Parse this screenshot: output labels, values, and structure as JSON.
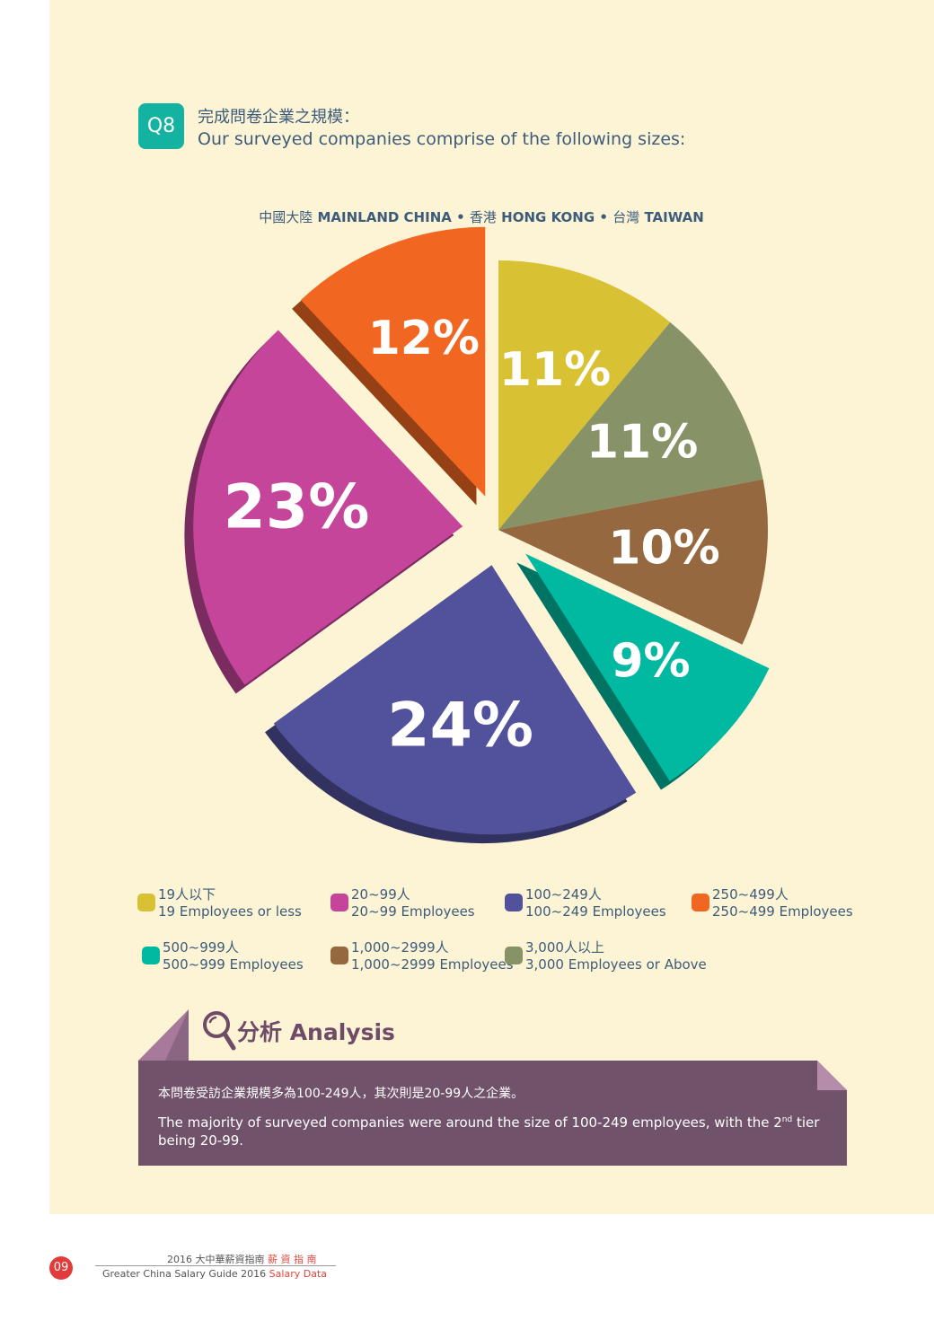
{
  "question": {
    "badge": "Q8",
    "title_zh": "完成問卷企業之規模：",
    "title_en": "Our surveyed companies comprise of the following sizes:"
  },
  "region": {
    "mainland_zh": "中國大陸",
    "mainland_en": "MAINLAND CHINA",
    "hk_zh": "香港",
    "hk_en": "HONG KONG",
    "tw_zh": "台灣",
    "tw_en": "TAIWAN",
    "separator": "•"
  },
  "chart_data": {
    "type": "pie",
    "style": "exploded 3D pie",
    "unit": "%",
    "slices": [
      {
        "label_zh": "19人以下",
        "label_en": "19 Employees or less",
        "value": 11,
        "color": "#d8c233",
        "exploded": false
      },
      {
        "label_zh": "3,000人以上",
        "label_en": "3,000 Employees or Above",
        "value": 11,
        "color": "#879267",
        "exploded": false
      },
      {
        "label_zh": "1,000~2999人",
        "label_en": "1,000~2999 Employees",
        "value": 10,
        "color": "#966840",
        "exploded": false
      },
      {
        "label_zh": "500~999人",
        "label_en": "500~999 Employees",
        "value": 9,
        "color": "#00b9a0",
        "exploded": true
      },
      {
        "label_zh": "100~249人",
        "label_en": "100~249 Employees",
        "value": 24,
        "color": "#51519c",
        "exploded": true
      },
      {
        "label_zh": "20~99人",
        "label_en": "20~99 Employees",
        "value": 23,
        "color": "#c5459a",
        "exploded": true
      },
      {
        "label_zh": "250~499人",
        "label_en": "250~499 Employees",
        "value": 12,
        "color": "#f16722",
        "exploded": true
      }
    ],
    "value_labels": [
      "11%",
      "11%",
      "10%",
      "9%",
      "24%",
      "23%",
      "12%"
    ]
  },
  "legend": [
    {
      "zh": "19人以下",
      "en": "19 Employees or less",
      "color": "#d8c233"
    },
    {
      "zh": "20~99人",
      "en": "20~99 Employees",
      "color": "#c5459a"
    },
    {
      "zh": "100~249人",
      "en": "100~249 Employees",
      "color": "#51519c"
    },
    {
      "zh": "250~499人",
      "en": "250~499 Employees",
      "color": "#f16722"
    },
    {
      "zh": "500~999人",
      "en": "500~999 Employees",
      "color": "#00b9a0"
    },
    {
      "zh": "1,000~2999人",
      "en": "1,000~2999 Employees",
      "color": "#966840"
    },
    {
      "zh": "3,000人以上",
      "en": "3,000 Employees or Above",
      "color": "#879267"
    }
  ],
  "analysis": {
    "title": "分析 Analysis",
    "text_zh": "本問卷受訪企業規模多為100-249人，其次則是20-99人之企業。",
    "text_en_before": "The majority of surveyed companies were around the size of 100-249 employees, with the 2",
    "text_en_sup": "nd",
    "text_en_after": " tier being 20-99."
  },
  "footer": {
    "page_number": "09",
    "line1_plain": "2016 大中華薪資指南",
    "line1_accent": "薪 資 指 南",
    "line2_plain": "Greater China Salary Guide 2016",
    "line2_accent": "Salary Data"
  }
}
